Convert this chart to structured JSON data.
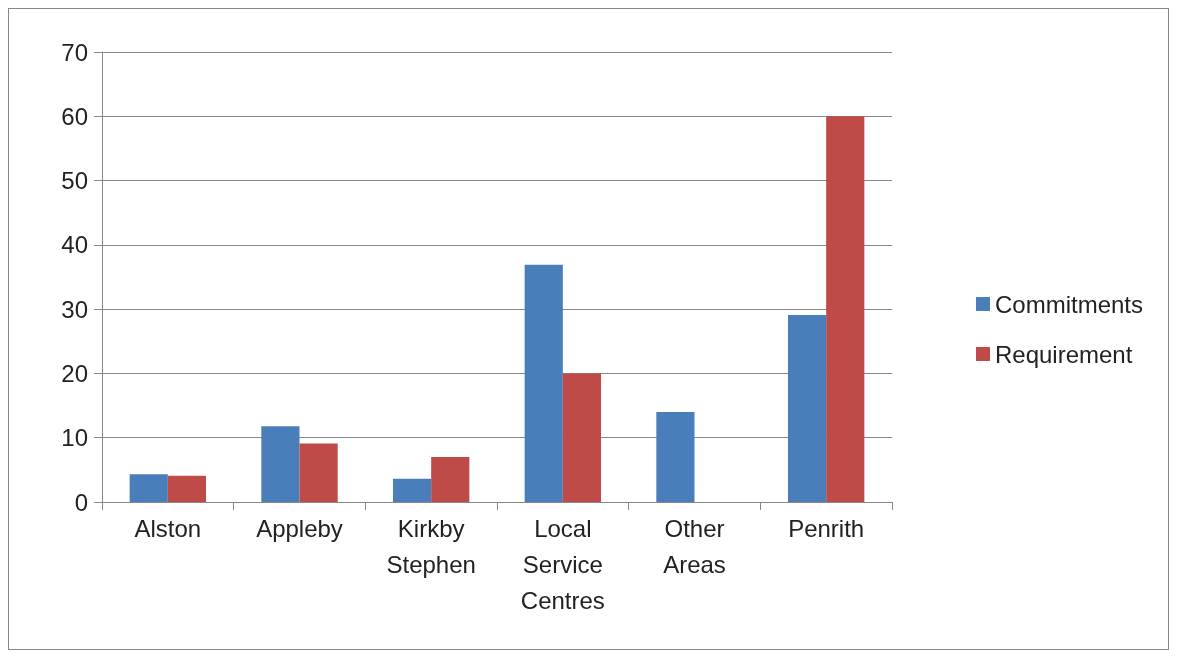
{
  "chart_data": {
    "type": "bar",
    "categories": [
      "Alston",
      "Appleby",
      "Kirkby Stephen",
      "Local Service Centres",
      "Other Areas",
      "Penrith"
    ],
    "series": [
      {
        "name": "Commitments",
        "color": "#4a7ebb",
        "values": [
          4.3,
          11.8,
          3.6,
          36.9,
          14,
          29.1
        ]
      },
      {
        "name": "Requirement",
        "color": "#be4b48",
        "values": [
          4.1,
          9.1,
          7,
          20,
          null,
          60
        ]
      }
    ],
    "ylim": [
      0,
      70
    ],
    "yticks": [
      0,
      10,
      20,
      30,
      40,
      50,
      60,
      70
    ],
    "grid": "y",
    "legend": "right"
  }
}
